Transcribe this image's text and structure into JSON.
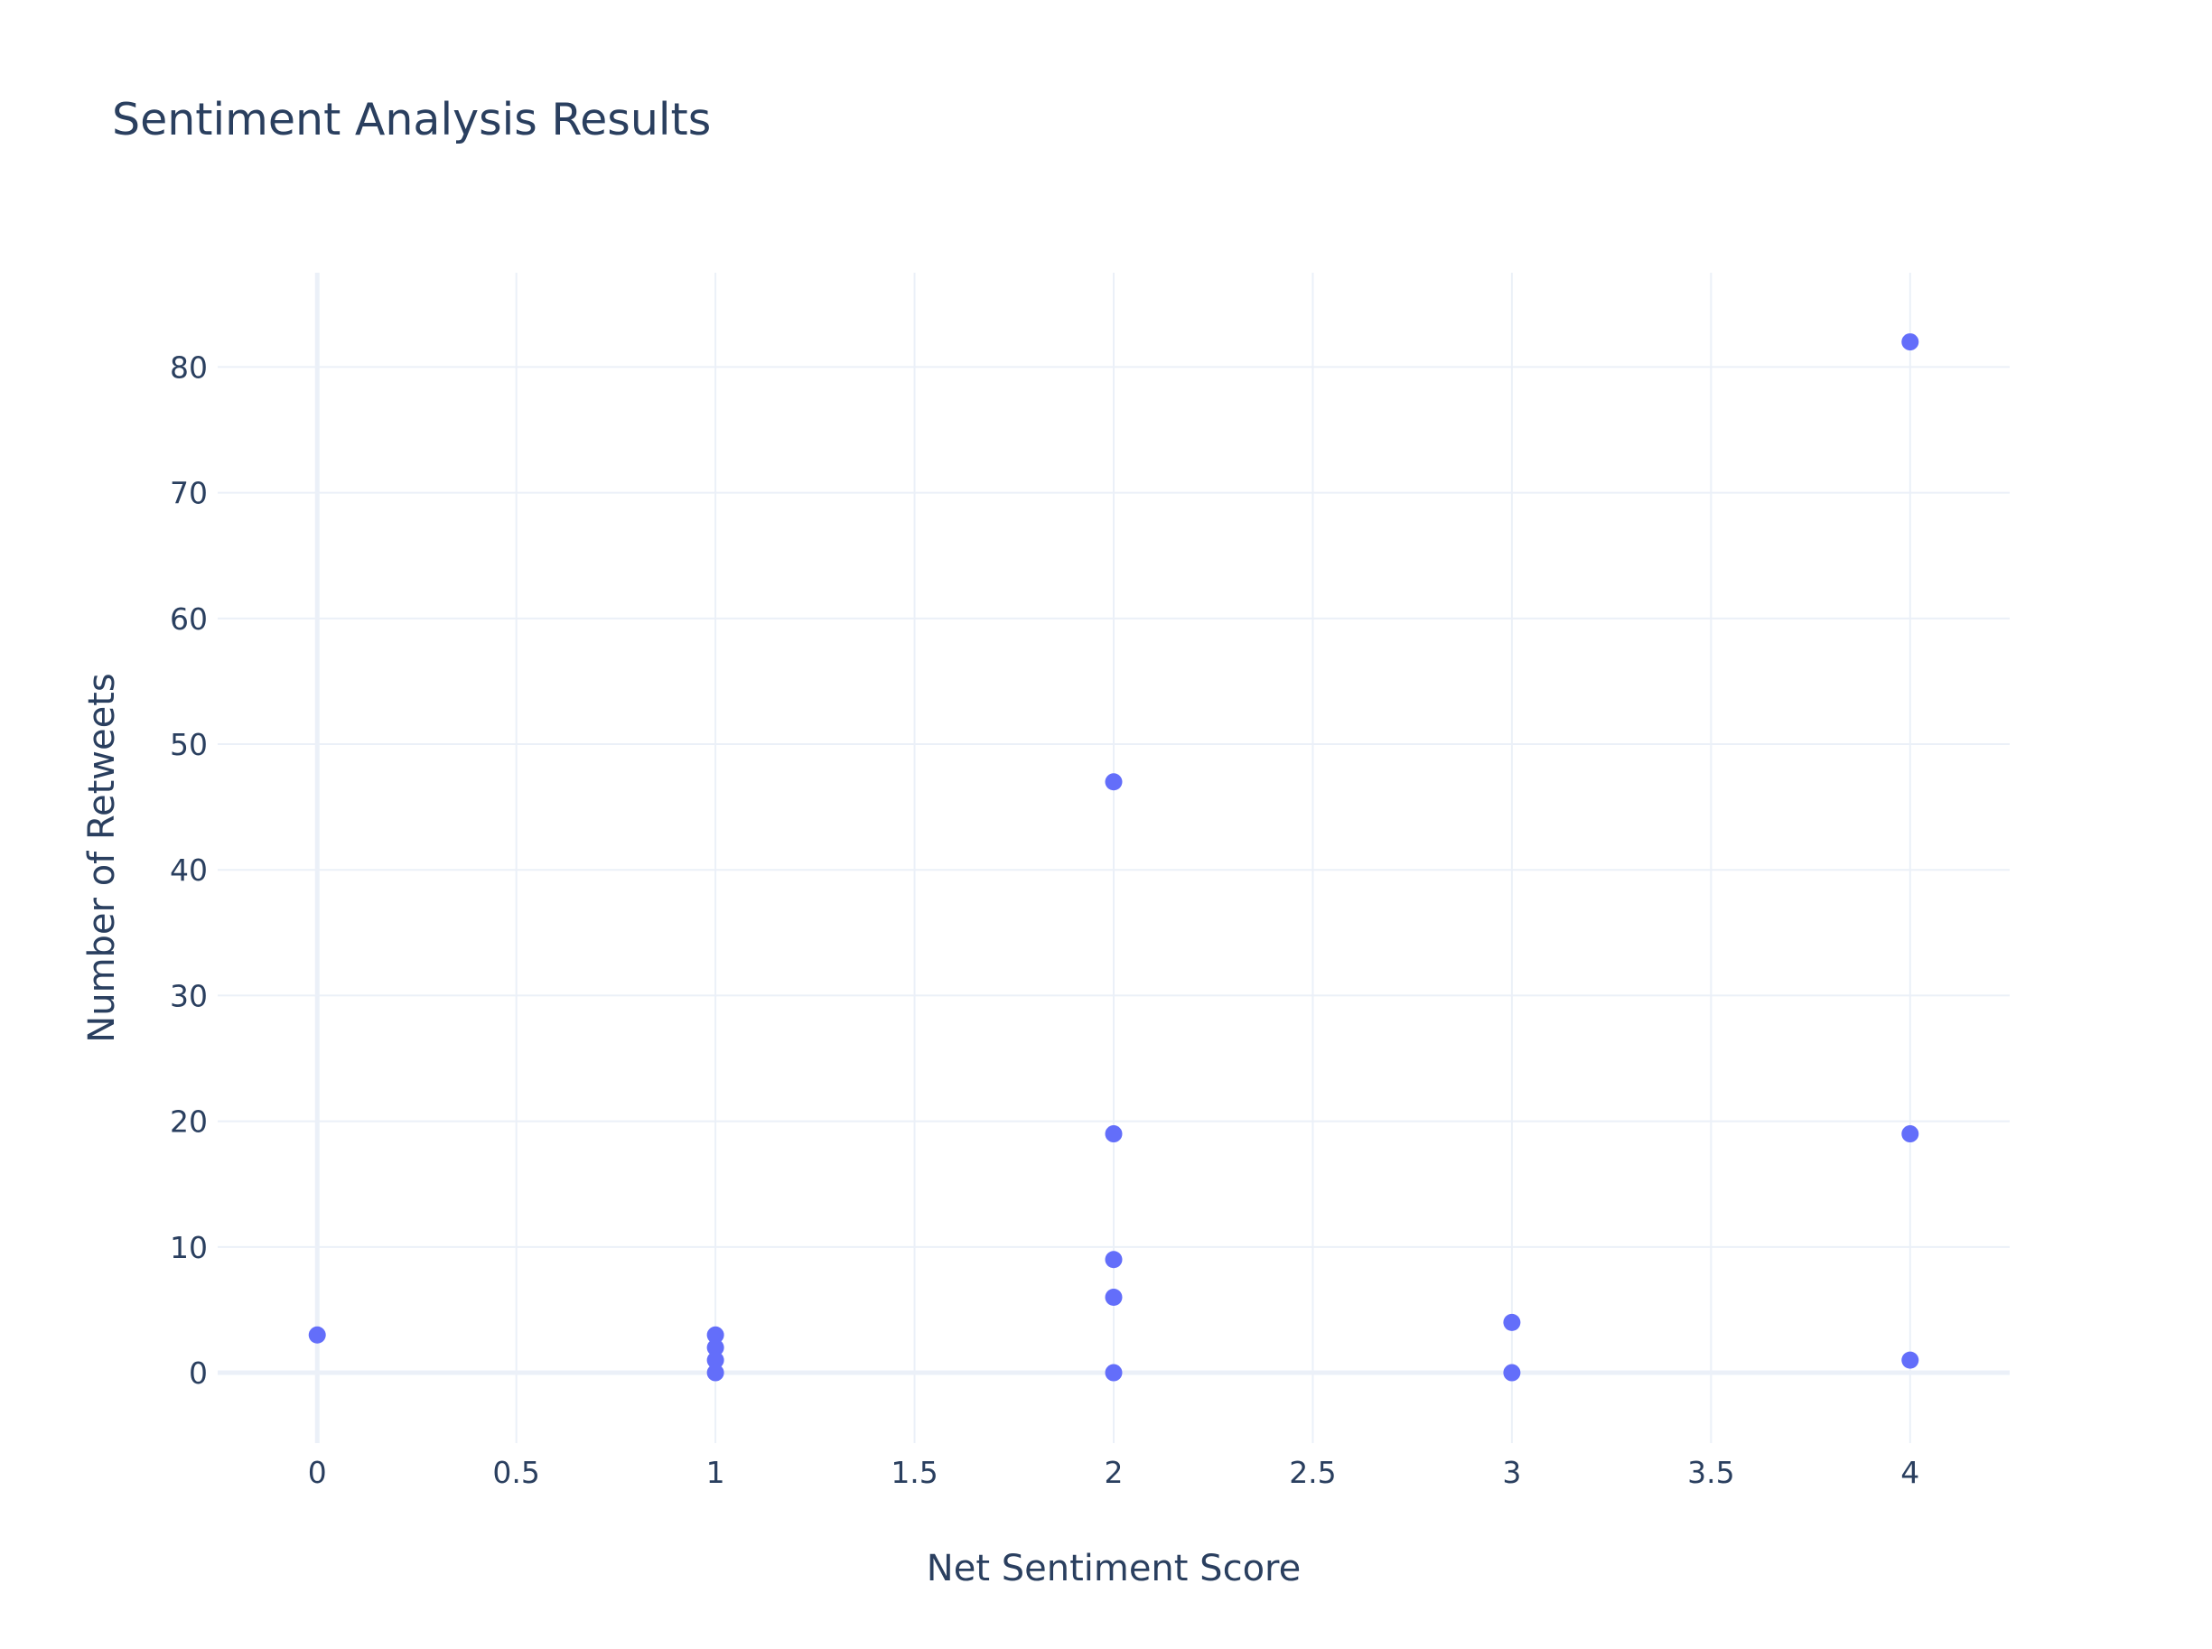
{
  "chart_data": {
    "type": "scatter",
    "title": "Sentiment Analysis Results",
    "xlabel": "Net Sentiment Score",
    "ylabel": "Number of Retweets",
    "xlim": [
      -0.25,
      4.25
    ],
    "ylim": [
      -5.6,
      87.5
    ],
    "x_ticks": [
      0,
      0.5,
      1,
      1.5,
      2,
      2.5,
      3,
      3.5,
      4
    ],
    "x_tick_labels": [
      "0",
      "0.5",
      "1",
      "1.5",
      "2",
      "2.5",
      "3",
      "3.5",
      "4"
    ],
    "y_ticks": [
      0,
      10,
      20,
      30,
      40,
      50,
      60,
      70,
      80
    ],
    "y_tick_labels": [
      "0",
      "10",
      "20",
      "30",
      "40",
      "50",
      "60",
      "70",
      "80"
    ],
    "grid": true,
    "marker_color": "#636efa",
    "grid_color": "#ebf0f8",
    "text_color": "#2a3f5f",
    "points": [
      {
        "x": 0,
        "y": 3
      },
      {
        "x": 1,
        "y": 3
      },
      {
        "x": 1,
        "y": 2
      },
      {
        "x": 1,
        "y": 1
      },
      {
        "x": 1,
        "y": 0
      },
      {
        "x": 2,
        "y": 47
      },
      {
        "x": 2,
        "y": 19
      },
      {
        "x": 2,
        "y": 9
      },
      {
        "x": 2,
        "y": 6
      },
      {
        "x": 2,
        "y": 0
      },
      {
        "x": 3,
        "y": 4
      },
      {
        "x": 3,
        "y": 0
      },
      {
        "x": 4,
        "y": 82
      },
      {
        "x": 4,
        "y": 19
      },
      {
        "x": 4,
        "y": 1
      }
    ]
  }
}
